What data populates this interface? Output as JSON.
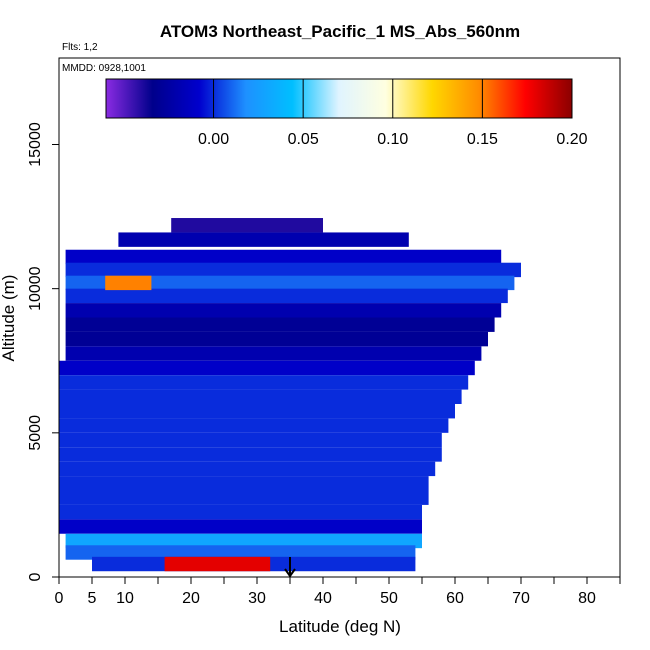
{
  "chart_data": {
    "type": "heatmap",
    "title": "ATOM3 Northeast_Pacific_1 MS_Abs_560nm",
    "flights_label": "Flts: 1,2",
    "dates_label": "MMDD: 0928,1001",
    "xlabel": "Latitude (deg N)",
    "ylabel": "Altitude (m)",
    "xlim": [
      0,
      85
    ],
    "ylim": [
      0,
      18000
    ],
    "x_ticks": [
      0,
      5,
      10,
      20,
      30,
      40,
      50,
      60,
      70,
      80
    ],
    "x_minor_ticks": [
      15,
      25,
      35,
      45,
      55,
      65,
      75,
      85
    ],
    "y_ticks": [
      0,
      5000,
      10000,
      15000
    ],
    "colorbar": {
      "range": [
        -0.06,
        0.2
      ],
      "ticks": [
        0.0,
        0.05,
        0.1,
        0.15,
        0.2
      ],
      "tick_labels": [
        "0.00",
        "0.05",
        "0.10",
        "0.15",
        "0.20"
      ],
      "colors": [
        "#8a2be2",
        "#00008b",
        "#0000cd",
        "#1e90ff",
        "#00bfff",
        "#e0f4ff",
        "#ffffe0",
        "#ffd700",
        "#ff8c00",
        "#ff0000",
        "#8b0000"
      ]
    },
    "layers": [
      {
        "alt": 12200,
        "lat_start": 17,
        "lat_end": 40,
        "value": -0.04
      },
      {
        "alt": 11700,
        "lat_start": 9,
        "lat_end": 53,
        "value": -0.02
      },
      {
        "alt": 11100,
        "lat_start": 1,
        "lat_end": 67,
        "value": -0.01
      },
      {
        "alt": 10650,
        "lat_start": 1,
        "lat_end": 70,
        "value": 0.0
      },
      {
        "alt": 10200,
        "lat_start": 1,
        "lat_end": 69,
        "value": 0.01
      },
      {
        "alt": 9750,
        "lat_start": 1,
        "lat_end": 68,
        "value": 0.0
      },
      {
        "alt": 9250,
        "lat_start": 1,
        "lat_end": 67,
        "value": -0.02
      },
      {
        "alt": 8750,
        "lat_start": 1,
        "lat_end": 66,
        "value": -0.03
      },
      {
        "alt": 8250,
        "lat_start": 1,
        "lat_end": 65,
        "value": -0.03
      },
      {
        "alt": 7750,
        "lat_start": 1,
        "lat_end": 64,
        "value": -0.02
      },
      {
        "alt": 7250,
        "lat_start": 0,
        "lat_end": 63,
        "value": -0.01
      },
      {
        "alt": 6750,
        "lat_start": 0,
        "lat_end": 62,
        "value": 0.0
      },
      {
        "alt": 6250,
        "lat_start": 0,
        "lat_end": 61,
        "value": 0.0
      },
      {
        "alt": 5750,
        "lat_start": 0,
        "lat_end": 60,
        "value": 0.0
      },
      {
        "alt": 5250,
        "lat_start": 0,
        "lat_end": 59,
        "value": 0.0
      },
      {
        "alt": 4750,
        "lat_start": 0,
        "lat_end": 58,
        "value": 0.0
      },
      {
        "alt": 4250,
        "lat_start": 0,
        "lat_end": 58,
        "value": 0.0
      },
      {
        "alt": 3750,
        "lat_start": 0,
        "lat_end": 57,
        "value": 0.0
      },
      {
        "alt": 3250,
        "lat_start": 0,
        "lat_end": 56,
        "value": 0.0
      },
      {
        "alt": 2750,
        "lat_start": 0,
        "lat_end": 56,
        "value": 0.0
      },
      {
        "alt": 2250,
        "lat_start": 0,
        "lat_end": 55,
        "value": 0.0
      },
      {
        "alt": 1750,
        "lat_start": 0,
        "lat_end": 55,
        "value": -0.01
      },
      {
        "alt": 1250,
        "lat_start": 1,
        "lat_end": 55,
        "value": 0.03
      },
      {
        "alt": 850,
        "lat_start": 1,
        "lat_end": 54,
        "value": 0.01
      },
      {
        "alt": 450,
        "lat_start": 5,
        "lat_end": 54,
        "value": 0.0
      }
    ],
    "hotspots": [
      {
        "alt": 10200,
        "lat_start": 7,
        "lat_end": 14,
        "value": 0.15
      },
      {
        "alt": 450,
        "lat_start": 16,
        "lat_end": 32,
        "value": 0.18
      }
    ],
    "marker_latitude": 35
  }
}
